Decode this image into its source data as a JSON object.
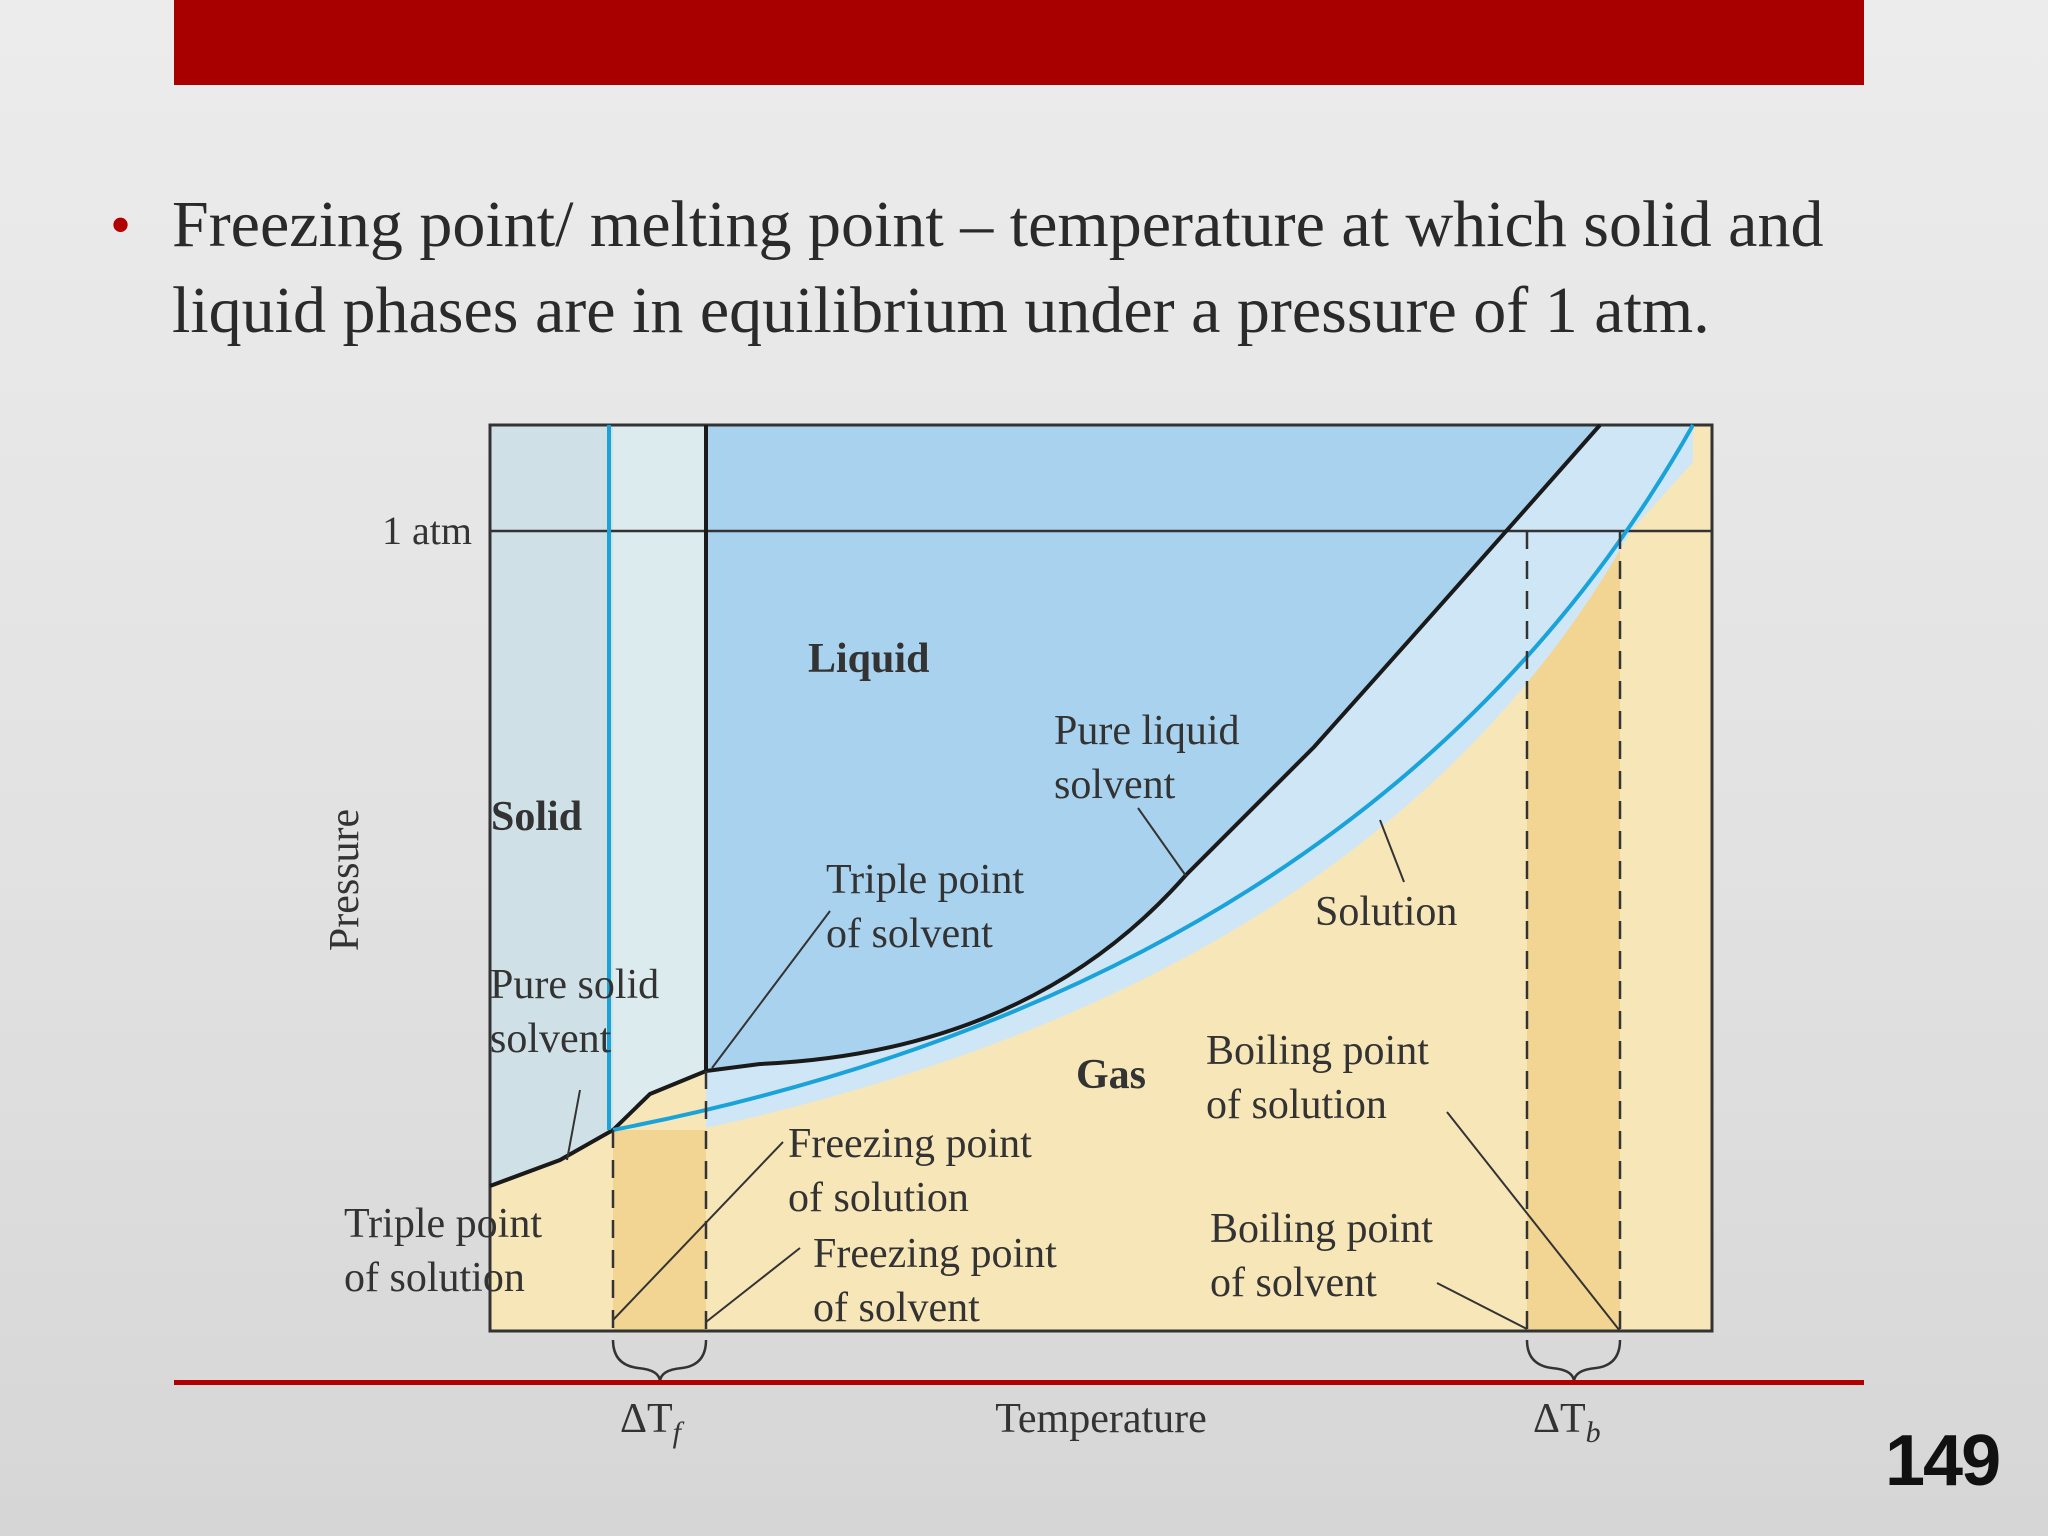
{
  "bullet": {
    "text": "Freezing point/ melting point – temperature at which solid and liquid phases are in equilibrium under a pressure of 1 atm."
  },
  "page_number": "149",
  "colors": {
    "accent": "#a80000",
    "liquid": "#a9d2ee",
    "solid": "#cfe0e6",
    "gas": "#f7e6b8",
    "solution_band": "#cfe6f6",
    "delta_band": "#f2d592",
    "solution_curve": "#1aa3d9",
    "solvent_curve": "#1a1a1a"
  },
  "diagram": {
    "axis_labels": {
      "y": "Pressure",
      "x": "Temperature"
    },
    "tick_labels": {
      "one_atm": "1 atm"
    },
    "regions": {
      "liquid": "Liquid",
      "solid": "Solid",
      "gas": "Gas"
    },
    "labels": {
      "pure_liquid_1": "Pure liquid",
      "pure_liquid_2": "solvent",
      "solution": "Solution",
      "triple_solvent_1": "Triple point",
      "triple_solvent_2": "of solvent",
      "pure_solid_1": "Pure solid",
      "pure_solid_2": "solvent",
      "boiling_solution_1": "Boiling point",
      "boiling_solution_2": "of solution",
      "freezing_solution_1": "Freezing point",
      "freezing_solution_2": "of solution",
      "triple_solution_1": "Triple point",
      "triple_solution_2": "of solution",
      "freezing_solvent_1": "Freezing point",
      "freezing_solvent_2": "of solvent",
      "boiling_solvent_1": "Boiling point",
      "boiling_solvent_2": "of solvent"
    },
    "delta_tf": {
      "delta": "ΔT",
      "sub": "f"
    },
    "delta_tb": {
      "delta": "ΔT",
      "sub": "b"
    }
  }
}
